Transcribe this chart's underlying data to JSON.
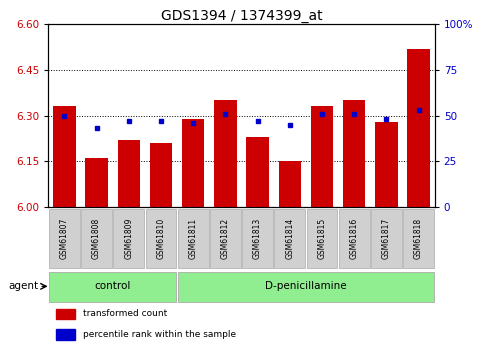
{
  "title": "GDS1394 / 1374399_at",
  "samples": [
    "GSM61807",
    "GSM61808",
    "GSM61809",
    "GSM61810",
    "GSM61811",
    "GSM61812",
    "GSM61813",
    "GSM61814",
    "GSM61815",
    "GSM61816",
    "GSM61817",
    "GSM61818"
  ],
  "bar_values": [
    6.33,
    6.16,
    6.22,
    6.21,
    6.29,
    6.35,
    6.23,
    6.15,
    6.33,
    6.35,
    6.28,
    6.52
  ],
  "percentile_values": [
    50,
    43,
    47,
    47,
    46,
    51,
    47,
    45,
    51,
    51,
    48,
    53
  ],
  "bar_bottom": 6.0,
  "ylim": [
    6.0,
    6.6
  ],
  "y2lim": [
    0,
    100
  ],
  "yticks": [
    6.0,
    6.15,
    6.3,
    6.45,
    6.6
  ],
  "y2ticks": [
    0,
    25,
    50,
    75,
    100
  ],
  "bar_color": "#cc0000",
  "dot_color": "#0000cc",
  "grid_color": "#000000",
  "control_count": 4,
  "bar_width": 0.7,
  "tick_label_color_left": "#cc0000",
  "tick_label_color_right": "#0000cc",
  "title_fontsize": 10,
  "group_color": "#90ee90",
  "group_edge_color": "#aaaaaa",
  "sample_box_color": "#d0d0d0",
  "legend_labels": [
    "transformed count",
    "percentile rank within the sample"
  ],
  "legend_colors": [
    "#cc0000",
    "#0000cc"
  ]
}
